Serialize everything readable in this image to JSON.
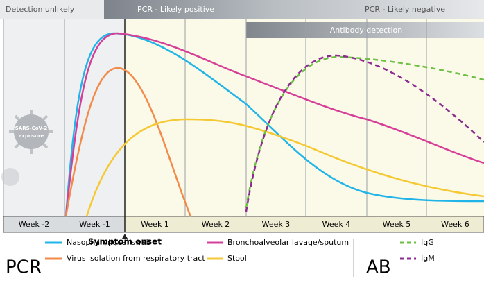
{
  "banner": {
    "left": "Detection unlikely",
    "middle": "PCR - Likely positive",
    "right": "PCR - Likely negative",
    "antibody": "Antibody detection"
  },
  "weeks": [
    "Week -2",
    "Week -1",
    "Week 1",
    "Week 2",
    "Week 3",
    "Week 4",
    "Week 5",
    "Week 6"
  ],
  "marker": "Symptom onset",
  "virus": {
    "line1": "SARS-CoV-2",
    "line2": "exposure"
  },
  "legend": {
    "pcr": {
      "title": "PCR",
      "items": [
        "Nasopharyngeal swab",
        "Virus isolation from respiratory tract",
        "Bronchoalveolar lavage/sputum",
        "Stool"
      ]
    },
    "ab": {
      "title": "AB",
      "items": [
        "IgG",
        "IgM"
      ]
    }
  }
}
